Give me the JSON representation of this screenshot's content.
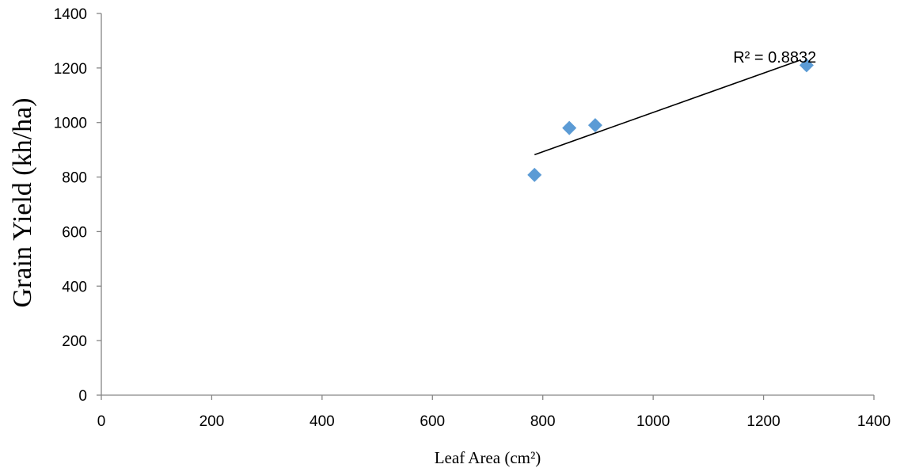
{
  "chart_data": {
    "type": "scatter",
    "title": "",
    "xlabel": "Leaf  Area (cm²)",
    "ylabel": "Grain Yield (kh/ha)",
    "xlim": [
      0,
      1400
    ],
    "ylim": [
      0,
      1400
    ],
    "x_ticks": [
      "0",
      "200",
      "400",
      "600",
      "800",
      "1000",
      "1200",
      "1400"
    ],
    "y_ticks": [
      "0",
      "200",
      "400",
      "600",
      "800",
      "1000",
      "1200",
      "1400"
    ],
    "grid": false,
    "legend": "none",
    "series": [
      {
        "marker": "diamond",
        "color": "#5B9BD5",
        "points": [
          {
            "x": 785,
            "y": 808
          },
          {
            "x": 848,
            "y": 980
          },
          {
            "x": 895,
            "y": 990
          },
          {
            "x": 1278,
            "y": 1210
          }
        ]
      }
    ],
    "trendline": {
      "type": "linear",
      "from": {
        "x": 785,
        "y": 882
      },
      "to": {
        "x": 1265,
        "y": 1228
      },
      "color": "#000000"
    },
    "annotations": [
      {
        "text": "R² = 0.8832",
        "x": 1145,
        "y": 1220
      }
    ]
  }
}
